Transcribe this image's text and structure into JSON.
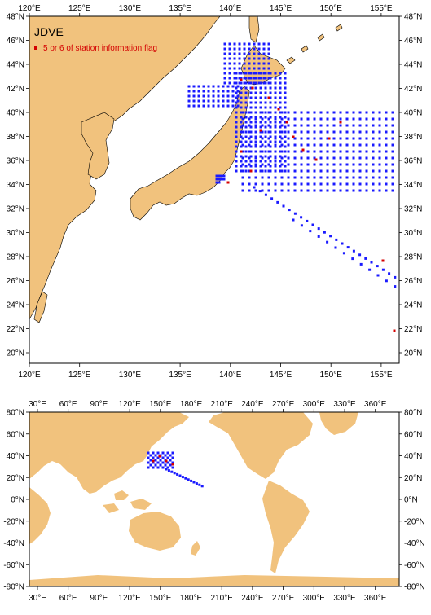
{
  "legend": {
    "title": "JDVE",
    "flag_label": "5 or 6 of station information flag"
  },
  "colors": {
    "land": "#f1c27d",
    "stations": "#1a1aff",
    "flagged": "#d40000"
  },
  "top_map": {
    "lon_labels": [
      "120°E",
      "125°E",
      "130°E",
      "135°E",
      "140°E",
      "145°E",
      "150°E",
      "155°E"
    ],
    "lat_labels": [
      "20°N",
      "22°N",
      "24°N",
      "26°N",
      "28°N",
      "30°N",
      "32°N",
      "34°N",
      "36°N",
      "38°N",
      "40°N",
      "42°N",
      "44°N",
      "46°N",
      "48°N"
    ]
  },
  "bottom_map": {
    "lon_labels": [
      "30°E",
      "60°E",
      "90°E",
      "120°E",
      "150°E",
      "180°E",
      "210°E",
      "240°E",
      "270°E",
      "300°E",
      "330°E",
      "360°E"
    ],
    "lat_labels": [
      "80°N",
      "60°N",
      "40°N",
      "20°N",
      "0°N",
      "-20°N",
      "-40°N",
      "-60°N",
      "-80°N"
    ]
  }
}
